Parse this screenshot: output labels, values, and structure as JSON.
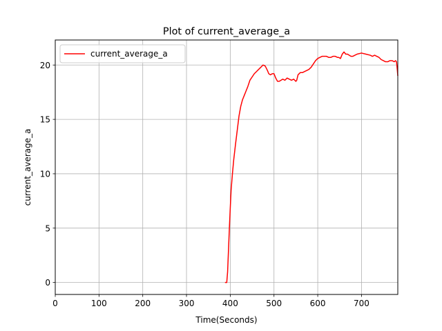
{
  "chart_data": {
    "type": "line",
    "title": "Plot of current_average_a",
    "xlabel": "Time(Seconds)",
    "ylabel": "current_average_a",
    "xlim": [
      0,
      783
    ],
    "ylim": [
      -1.1,
      22.3
    ],
    "xticks": [
      0,
      100,
      200,
      300,
      400,
      500,
      600,
      700
    ],
    "yticks": [
      0,
      5,
      10,
      15,
      20
    ],
    "grid": true,
    "legend_position": "upper-left",
    "series": [
      {
        "name": "current_average_a",
        "color": "#ff0000",
        "x": [
          388,
          392,
          394,
          396,
          398,
          400,
          402,
          405,
          408,
          412,
          416,
          420,
          424,
          428,
          432,
          436,
          440,
          445,
          450,
          455,
          460,
          465,
          470,
          475,
          480,
          485,
          488,
          492,
          496,
          500,
          504,
          508,
          512,
          516,
          520,
          525,
          530,
          535,
          540,
          545,
          550,
          552,
          555,
          560,
          565,
          570,
          575,
          580,
          585,
          590,
          595,
          600,
          605,
          610,
          615,
          620,
          625,
          630,
          635,
          640,
          645,
          648,
          652,
          656,
          660,
          664,
          668,
          672,
          676,
          680,
          685,
          690,
          700,
          710,
          720,
          725,
          730,
          735,
          740,
          745,
          750,
          755,
          760,
          765,
          770,
          775,
          778,
          780,
          782,
          783
        ],
        "y": [
          0,
          0,
          1.0,
          3.0,
          5.0,
          6.8,
          8.5,
          10.0,
          11.3,
          12.7,
          14.0,
          15.3,
          16.2,
          16.8,
          17.2,
          17.6,
          18.0,
          18.6,
          18.9,
          19.2,
          19.4,
          19.6,
          19.8,
          20.0,
          19.9,
          19.5,
          19.2,
          19.1,
          19.2,
          19.2,
          18.8,
          18.5,
          18.5,
          18.6,
          18.7,
          18.6,
          18.8,
          18.7,
          18.6,
          18.7,
          18.5,
          18.6,
          19.1,
          19.3,
          19.3,
          19.4,
          19.5,
          19.6,
          19.8,
          20.1,
          20.4,
          20.6,
          20.7,
          20.8,
          20.8,
          20.8,
          20.7,
          20.7,
          20.8,
          20.8,
          20.7,
          20.7,
          20.6,
          21.0,
          21.2,
          21.0,
          21.0,
          20.9,
          20.8,
          20.8,
          20.9,
          21.0,
          21.1,
          21.0,
          20.9,
          20.8,
          20.9,
          20.8,
          20.7,
          20.5,
          20.4,
          20.3,
          20.3,
          20.4,
          20.4,
          20.3,
          20.4,
          20.3,
          19.5,
          19.0
        ]
      }
    ]
  }
}
